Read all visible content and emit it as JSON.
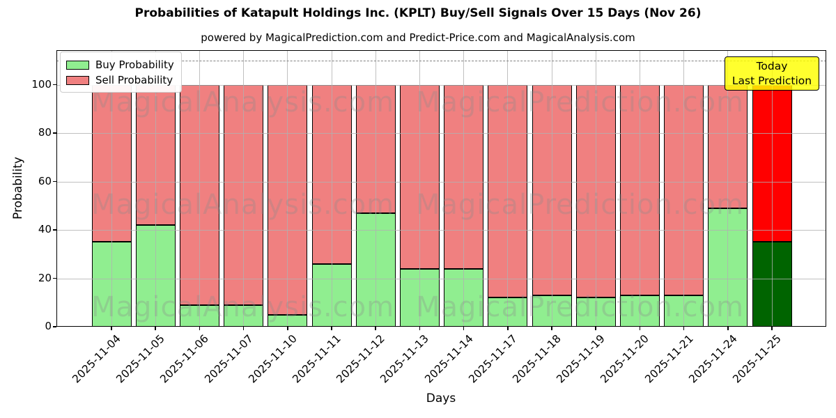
{
  "title": "Probabilities of Katapult Holdings Inc. (KPLT) Buy/Sell Signals Over 15 Days (Nov 26)",
  "subtitle": "powered by MagicalPrediction.com and Predict-Price.com and MagicalAnalysis.com",
  "axis": {
    "xlabel": "Days",
    "ylabel": "Probability"
  },
  "legend": {
    "items": [
      {
        "label": "Buy Probability",
        "color": "#90EE90"
      },
      {
        "label": "Sell Probability",
        "color": "#F08080"
      }
    ]
  },
  "annotation_box": {
    "line1": "Today",
    "line2": "Last Prediction",
    "bg_color": "#FFFF00"
  },
  "watermarks": {
    "left": "MagicalAnalysis.com",
    "right": "MagicalPrediction.com"
  },
  "chart_data": {
    "type": "bar",
    "stacked": true,
    "title": "Probabilities of Katapult Holdings Inc. (KPLT) Buy/Sell Signals Over 15 Days (Nov 26)",
    "xlabel": "Days",
    "ylabel": "Probability",
    "categories": [
      "2025-11-04",
      "2025-11-05",
      "2025-11-06",
      "2025-11-07",
      "2025-11-10",
      "2025-11-11",
      "2025-11-12",
      "2025-11-13",
      "2025-11-14",
      "2025-11-17",
      "2025-11-18",
      "2025-11-19",
      "2025-11-20",
      "2025-11-21",
      "2025-11-24",
      "2025-11-25"
    ],
    "series": [
      {
        "name": "Buy Probability",
        "color": "#90EE90",
        "values": [
          35,
          42,
          9,
          9,
          5,
          26,
          47,
          24,
          24,
          12,
          13,
          12,
          13,
          13,
          49,
          35
        ]
      },
      {
        "name": "Sell Probability",
        "color": "#F08080",
        "values": [
          65,
          58,
          91,
          91,
          95,
          74,
          53,
          76,
          76,
          88,
          87,
          88,
          87,
          87,
          51,
          65
        ]
      }
    ],
    "today_bar": {
      "category": "2025-11-25",
      "buy_color": "#006400",
      "sell_color": "#FF0000"
    },
    "yticks": [
      0,
      20,
      40,
      60,
      80,
      100
    ],
    "ylim": [
      0,
      114.3
    ],
    "dashed_guide_y": 110,
    "grid": true,
    "legend_position": "upper left"
  }
}
